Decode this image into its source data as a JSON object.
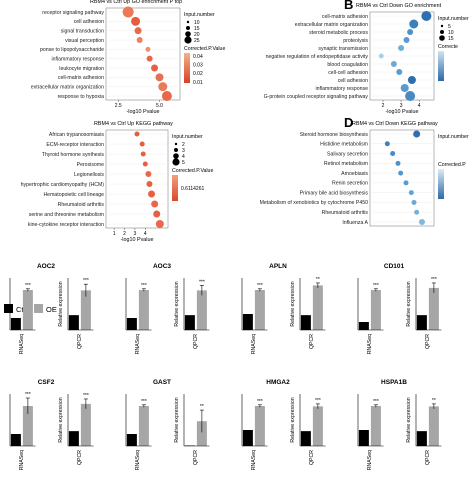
{
  "panel_letters": {
    "b": "B",
    "d": "D"
  },
  "panels": {
    "a": {
      "title": "RBM4 vs Ctrl Up GO enrichment P top",
      "terms": [
        "receptor signaling pathway",
        "cell adhesion",
        "signal transduction",
        "visual perception",
        "ponse to lipopolysaccharide",
        "inflammatory response",
        "leukocyte migration",
        "cell-matrix adhesion",
        "extracellular matrix organization",
        "response to hypoxia"
      ],
      "values": [
        3.1,
        3.55,
        3.7,
        3.8,
        4.3,
        4.4,
        4.7,
        5.0,
        5.2,
        5.45
      ],
      "sizes": [
        10,
        8,
        6,
        5,
        4,
        5,
        6,
        7,
        8,
        9
      ],
      "colors": [
        "#eb7a56",
        "#e85c3e",
        "#e86a48",
        "#ec8060",
        "#ee9072",
        "#e6674a",
        "#e86042",
        "#e57153",
        "#ea7b59",
        "#e86849"
      ],
      "xlabel": "-log10 Pvalue",
      "xticks": [
        "2.5",
        "5.0"
      ],
      "size_legend_title": "Input.number",
      "size_legend": [
        "10",
        "15",
        "20",
        "25"
      ],
      "color_legend_title": "Corrected.P.Value",
      "color_legend_ticks": [
        "0.04",
        "0.03",
        "0.02",
        "0.01"
      ]
    },
    "b": {
      "title": "RBM4 vs Ctrl Down GO enrichment",
      "terms": [
        "cell-matrix adhesion",
        "extracellular matrix organization",
        "steroid metabolic process",
        "proteolysis",
        "synaptic transmission",
        "negative regulation of endopeptidase activity",
        "blood coagulation",
        "cell-cell adhesion",
        "cell adhesion",
        "inflammatory response",
        "G-protein coupled receptor signaling pathway"
      ],
      "values": [
        4.4,
        3.7,
        3.5,
        3.3,
        3.0,
        1.9,
        2.6,
        2.9,
        3.6,
        3.2,
        3.5
      ],
      "sizes": [
        9,
        8,
        5,
        5,
        5,
        4,
        5,
        5,
        7,
        7,
        9
      ],
      "colors": [
        "#2f6fb0",
        "#3c7fbe",
        "#4f91c9",
        "#5b9bd1",
        "#70add9",
        "#a9cfe9",
        "#6ca9d8",
        "#5b9bd1",
        "#2f6fb0",
        "#5a9ad0",
        "#4a89c4"
      ],
      "xlabel": "-log10 Pvalue",
      "xticks": [
        "2",
        "3",
        "4"
      ],
      "size_legend_title": "Input.number",
      "size_legend": [
        "5",
        "10",
        "15"
      ],
      "color_legend_title": "Correcte"
    },
    "c": {
      "title": "RBM4 vs Ctrl Up KEGG pathway",
      "terms": [
        "African trypanosomiasis",
        "ECM-receptor interaction",
        "Thyroid hormone synthesis",
        "Peroxisome",
        "Legionellosis",
        "hypertrophic cardiomyopathy (HCM)",
        "Hematopoietic cell lineage",
        "Rheumatoid arthritis",
        "serine and threonine metabolism",
        "kine-cytokine receptor interaction"
      ],
      "values": [
        3.2,
        3.7,
        3.8,
        4.0,
        4.3,
        4.4,
        4.6,
        4.9,
        5.1,
        5.4
      ],
      "sizes": [
        4,
        4,
        4,
        4,
        5,
        5,
        6,
        6,
        6,
        7
      ],
      "colors": [
        "#e85c3e",
        "#e85c3e",
        "#e86042",
        "#e86042",
        "#e9684a",
        "#e86042",
        "#e86042",
        "#e6674a",
        "#e86042",
        "#e8694b"
      ],
      "xlabel": "-log10 Pvalue",
      "xticks": [
        "1",
        "2",
        "3",
        "4"
      ],
      "size_legend_title": "Input.number",
      "size_legend": [
        "2",
        "3",
        "4",
        "5"
      ],
      "color_legend_title": "Corrected.P.Value",
      "color_legend_ticks": [
        "0.6114261"
      ]
    },
    "d": {
      "title": "RBM4 vs Ctrl Down KEGG pathway",
      "terms": [
        "Steroid hormone biosynthesis",
        "Histidine metabolism",
        "Salivary secretion",
        "Retinol metabolism",
        "Amoebiasis",
        "Renin secretion",
        "Primary bile acid biosynthesis",
        "Metabolism of xenobiotics by cytochrome P450",
        "Rheumatoid arthritis",
        "Influenza A"
      ],
      "values": [
        4.1,
        3.0,
        3.2,
        3.4,
        3.5,
        3.7,
        3.9,
        4.0,
        4.1,
        4.3
      ],
      "sizes": [
        6,
        4,
        4,
        4,
        4,
        4,
        4,
        4,
        4,
        5
      ],
      "colors": [
        "#2f6fb0",
        "#3f82c0",
        "#4a8cc6",
        "#4f91c9",
        "#5597cd",
        "#5b9bd1",
        "#64a2d5",
        "#6ca9d8",
        "#75b0db",
        "#81b8e0"
      ],
      "size_legend_title": "Input.number",
      "color_legend_title": "Corrected.P"
    }
  },
  "legend": {
    "ctrl": "Ctrl",
    "oe": "OE"
  },
  "colors": {
    "ctrl": "#000000",
    "oe": "#a6a6a6",
    "up": "#e8613f",
    "down": "#3b7fbf"
  },
  "bar_ylabel": "Relative expression",
  "bar_xlabels": {
    "left": "RNASeq",
    "right": "QPCR"
  },
  "genes": [
    {
      "name": "AOC2",
      "sig": [
        "***",
        "***"
      ],
      "ctrl": [
        0.3,
        0.6
      ],
      "oe": [
        1.0,
        1.6
      ],
      "err": [
        0.03,
        0.25
      ]
    },
    {
      "name": "AOC3",
      "sig": [
        "***",
        "***"
      ],
      "ctrl": [
        0.3,
        0.6
      ],
      "oe": [
        1.0,
        1.6
      ],
      "err": [
        0.03,
        0.2
      ]
    },
    {
      "name": "APLN",
      "sig": [
        "***",
        "**"
      ],
      "ctrl": [
        0.4,
        0.6
      ],
      "oe": [
        1.0,
        1.8
      ],
      "err": [
        0.03,
        0.1
      ]
    },
    {
      "name": "CD101",
      "sig": [
        "***",
        "***"
      ],
      "ctrl": [
        0.2,
        0.6
      ],
      "oe": [
        1.0,
        1.7
      ],
      "err": [
        0.03,
        0.2
      ]
    },
    {
      "name": "CSF2",
      "sig": [
        "***",
        "***"
      ],
      "ctrl": [
        0.3,
        0.6
      ],
      "oe": [
        1.0,
        1.7
      ],
      "err": [
        0.2,
        0.2
      ]
    },
    {
      "name": "GAST",
      "sig": [
        "***",
        "**"
      ],
      "ctrl": [
        0.3,
        0.02
      ],
      "oe": [
        1.0,
        1.0
      ],
      "err": [
        0.03,
        0.45
      ]
    },
    {
      "name": "HMGA2",
      "sig": [
        "***",
        "***"
      ],
      "ctrl": [
        0.4,
        0.6
      ],
      "oe": [
        1.0,
        1.6
      ],
      "err": [
        0.03,
        0.1
      ]
    },
    {
      "name": "HSPA1B",
      "sig": [
        "***",
        "**"
      ],
      "ctrl": [
        0.4,
        0.6
      ],
      "oe": [
        1.0,
        1.6
      ],
      "err": [
        0.03,
        0.1
      ]
    }
  ]
}
